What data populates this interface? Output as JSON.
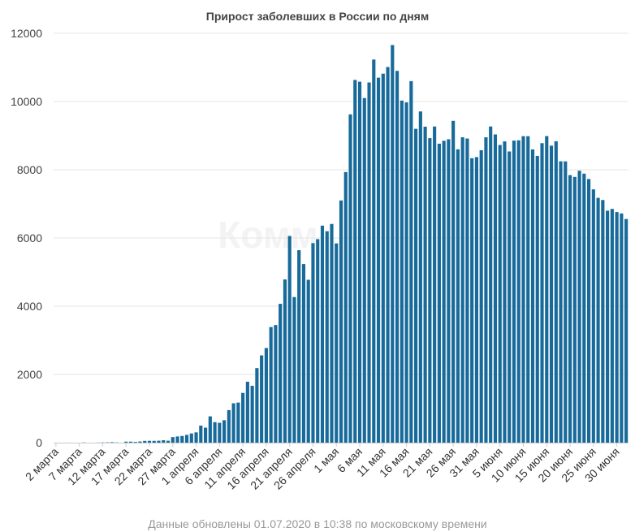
{
  "chart_data": {
    "type": "bar",
    "title": "Прирост заболевших в России по дням",
    "footnote": "Данные обновлены 01.07.2020 в 10:38 по московскому времени",
    "watermark": "Комм",
    "bar_color": "#176a9a",
    "ylim": [
      0,
      12000
    ],
    "yticks": [
      0,
      2000,
      4000,
      6000,
      8000,
      10000,
      12000
    ],
    "grid": true,
    "legend": "none",
    "x_tick_labels": [
      "2 марта",
      "7 марта",
      "12 марта",
      "17 марта",
      "22 марта",
      "27 марта",
      "1 апреля",
      "6 апреля",
      "11 апреля",
      "16 апреля",
      "21 апреля",
      "26 апреля",
      "1 мая",
      "6 мая",
      "11 мая",
      "16 мая",
      "21 мая",
      "26 мая",
      "31 мая",
      "5 июня",
      "10 июня",
      "15 июня",
      "20 июня",
      "25 июня",
      "30 июня"
    ],
    "values": [
      1,
      0,
      1,
      0,
      0,
      0,
      6,
      0,
      0,
      3,
      7,
      8,
      14,
      6,
      1,
      29,
      30,
      21,
      33,
      52,
      54,
      53,
      57,
      71,
      57,
      163,
      182,
      196,
      228,
      270,
      302,
      500,
      440,
      771,
      601,
      582,
      658,
      954,
      1154,
      1175,
      1459,
      1786,
      1667,
      2186,
      2558,
      2774,
      3388,
      3448,
      4070,
      4785,
      6060,
      4268,
      5642,
      5236,
      4774,
      5849,
      5966,
      6361,
      6198,
      6411,
      5841,
      7099,
      7933,
      9623,
      10633,
      10581,
      10102,
      10559,
      11231,
      10699,
      10817,
      11012,
      11656,
      10899,
      10028,
      9974,
      10598,
      9200,
      9709,
      9263,
      8926,
      9268,
      8764,
      8849,
      8894,
      9434,
      8599,
      8952,
      8915,
      8338,
      8371,
      8572,
      8952,
      9268,
      9035,
      8726,
      8831,
      8536,
      8855,
      8863,
      8985,
      8984,
      8595,
      8404,
      8779,
      8987,
      8706,
      8835,
      8248,
      8246,
      7843,
      7790,
      7972,
      7886,
      7728,
      7425,
      7176,
      7113,
      6800,
      6852,
      6760,
      6719,
      6556
    ]
  }
}
